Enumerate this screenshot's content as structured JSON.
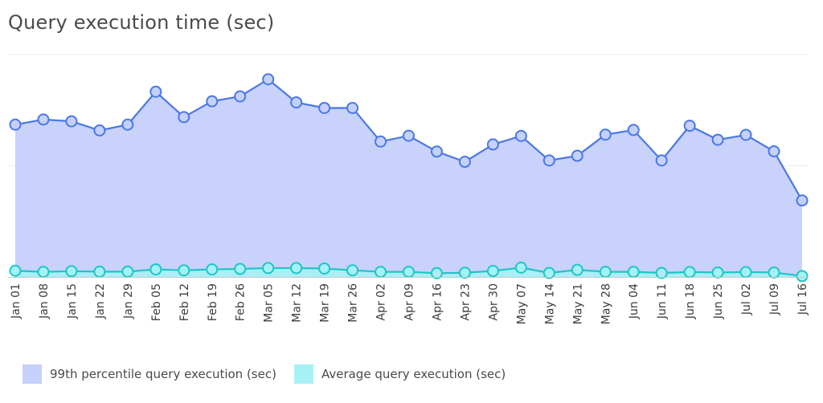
{
  "chart_data": {
    "type": "area",
    "title": "Query execution time (sec)",
    "categories": [
      "Jan 01",
      "Jan 08",
      "Jan 15",
      "Jan 22",
      "Jan 29",
      "Feb 05",
      "Feb 12",
      "Feb 19",
      "Feb 26",
      "Mar 05",
      "Mar 12",
      "Mar 19",
      "Mar 26",
      "Apr 02",
      "Apr 09",
      "Apr 16",
      "Apr 23",
      "Apr 30",
      "May 07",
      "May 14",
      "May 21",
      "May 28",
      "Jun 04",
      "Jun 11",
      "Jun 18",
      "Jun 25",
      "Jul 02",
      "Jul 09",
      "Jul 16"
    ],
    "ylim": [
      0,
      100
    ],
    "grid": true,
    "legend_position": "bottom-left",
    "series": [
      {
        "name": "99th percentile query execution (sec)",
        "color": "#4a78e6",
        "fill": "#c5d0fb",
        "values": [
          68.5,
          70.8,
          70.0,
          65.9,
          68.5,
          83.3,
          71.9,
          79.0,
          81.2,
          88.9,
          78.5,
          76.0,
          76.0,
          60.9,
          63.5,
          56.4,
          51.8,
          59.6,
          63.4,
          52.4,
          54.5,
          64.0,
          66.1,
          52.4,
          68.0,
          61.7,
          63.9,
          56.5,
          34.4
        ]
      },
      {
        "name": "Average query execution (sec)",
        "color": "#1fc6c6",
        "fill": "#a6f1f5",
        "values": [
          2.8,
          2.3,
          2.6,
          2.4,
          2.4,
          3.4,
          3.0,
          3.4,
          3.6,
          4.0,
          4.0,
          3.8,
          3.0,
          2.3,
          2.3,
          1.7,
          1.9,
          2.7,
          4.2,
          1.8,
          3.2,
          2.3,
          2.3,
          1.8,
          2.2,
          2.0,
          2.2,
          2.0,
          0.4
        ]
      }
    ]
  }
}
